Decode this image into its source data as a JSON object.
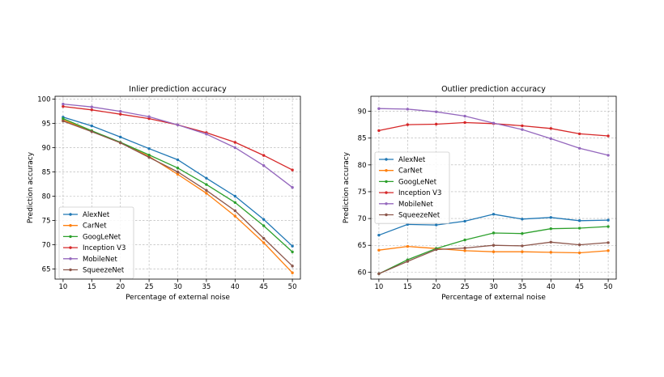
{
  "chart_data": [
    {
      "type": "line",
      "title": "Inlier prediction accuracy",
      "xlabel": "Percentage of external noise",
      "ylabel": "Prediction accuracy",
      "x": [
        10,
        15,
        20,
        25,
        30,
        35,
        40,
        45,
        50
      ],
      "xlim": [
        8.6,
        51.4
      ],
      "ylim": [
        62.9,
        100.6
      ],
      "xticks": [
        10,
        15,
        20,
        25,
        30,
        35,
        40,
        45,
        50
      ],
      "yticks": [
        65,
        70,
        75,
        80,
        85,
        90,
        95,
        100
      ],
      "grid": true,
      "legend": "lower-left",
      "series": [
        {
          "name": "AlexNet",
          "color": "#1f77b4",
          "values": [
            96.3,
            94.5,
            92.2,
            89.8,
            87.5,
            83.7,
            80.0,
            75.2,
            69.7
          ]
        },
        {
          "name": "CarNet",
          "color": "#ff7f0e",
          "values": [
            95.7,
            93.4,
            91.0,
            88.2,
            84.5,
            80.6,
            75.9,
            70.4,
            64.2
          ]
        },
        {
          "name": "GoogLeNet",
          "color": "#2ca02c",
          "values": [
            96.0,
            93.5,
            91.1,
            88.5,
            85.8,
            82.4,
            78.7,
            73.9,
            68.5
          ]
        },
        {
          "name": "Inception V3",
          "color": "#d62728",
          "values": [
            98.5,
            97.8,
            96.9,
            96.0,
            94.7,
            93.1,
            91.1,
            88.4,
            85.4
          ]
        },
        {
          "name": "MobileNet",
          "color": "#9467bd",
          "values": [
            99.0,
            98.4,
            97.5,
            96.4,
            94.7,
            92.8,
            90.0,
            86.3,
            81.8
          ]
        },
        {
          "name": "SqueezeNet",
          "color": "#8c564b",
          "values": [
            95.5,
            93.3,
            91.0,
            88.0,
            85.0,
            81.2,
            77.0,
            71.3,
            65.6
          ]
        }
      ]
    },
    {
      "type": "line",
      "title": "Outlier prediction accuracy",
      "xlabel": "Percentage of external noise",
      "ylabel": "Prediction accuracy",
      "x": [
        10,
        15,
        20,
        25,
        30,
        35,
        40,
        45,
        50
      ],
      "xlim": [
        8.6,
        51.4
      ],
      "ylim": [
        58.7,
        92.8
      ],
      "xticks": [
        10,
        15,
        20,
        25,
        30,
        35,
        40,
        45,
        50
      ],
      "yticks": [
        60,
        65,
        70,
        75,
        80,
        85,
        90
      ],
      "grid": true,
      "legend": "center-left",
      "series": [
        {
          "name": "AlexNet",
          "color": "#1f77b4",
          "values": [
            66.9,
            68.9,
            68.8,
            69.5,
            70.8,
            69.9,
            70.2,
            69.6,
            69.7
          ]
        },
        {
          "name": "CarNet",
          "color": "#ff7f0e",
          "values": [
            64.1,
            64.8,
            64.4,
            64.0,
            63.8,
            63.8,
            63.7,
            63.6,
            64.0
          ]
        },
        {
          "name": "GoogLeNet",
          "color": "#2ca02c",
          "values": [
            59.7,
            62.3,
            64.4,
            66.0,
            67.3,
            67.2,
            68.1,
            68.2,
            68.5
          ]
        },
        {
          "name": "Inception V3",
          "color": "#d62728",
          "values": [
            86.4,
            87.5,
            87.6,
            87.9,
            87.7,
            87.3,
            86.8,
            85.8,
            85.4
          ]
        },
        {
          "name": "MobileNet",
          "color": "#9467bd",
          "values": [
            90.5,
            90.4,
            89.9,
            89.1,
            87.8,
            86.6,
            84.9,
            83.1,
            81.8
          ]
        },
        {
          "name": "SqueezeNet",
          "color": "#8c564b",
          "values": [
            59.7,
            62.0,
            64.2,
            64.5,
            65.0,
            64.9,
            65.6,
            65.1,
            65.5
          ]
        }
      ]
    }
  ]
}
